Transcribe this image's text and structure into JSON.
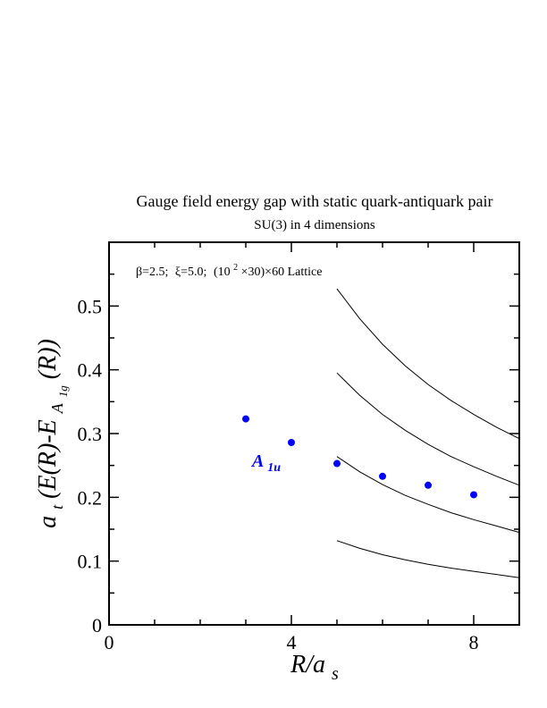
{
  "chart_data": {
    "type": "scatter",
    "title": "Gauge field energy gap with static quark-antiquark pair",
    "subtitle": "SU(3) in 4 dimensions",
    "annotation": {
      "beta": "β=2.5;",
      "xi": "ξ=5.0;",
      "lattice_pre": "(10",
      "lattice_exp": "2",
      "lattice_post": "×30)×60 Lattice"
    },
    "xlabel": {
      "main": "R/a",
      "sub": "s"
    },
    "ylabel": {
      "pre": "a",
      "pre_sub": "t",
      "mid": "(E(R)-E",
      "sub": "A",
      "subsub": "1g",
      "post": "(R))"
    },
    "xlim": [
      0,
      9
    ],
    "ylim": [
      0,
      0.6
    ],
    "x_ticks": [
      0,
      4,
      8
    ],
    "x_tick_labels": [
      "0",
      "4",
      "8"
    ],
    "y_ticks": [
      0,
      0.1,
      0.2,
      0.3,
      0.4,
      0.5
    ],
    "y_tick_labels": [
      "0",
      "0.1",
      "0.2",
      "0.3",
      "0.4",
      "0.5"
    ],
    "series": [
      {
        "name": "A1u",
        "label_main": "A",
        "label_sub": "1u",
        "color": "#0000ff",
        "x": [
          3,
          4,
          5,
          6,
          7,
          8
        ],
        "y": [
          0.323,
          0.286,
          0.253,
          0.233,
          0.219,
          0.204
        ]
      }
    ],
    "curves": [
      {
        "x": [
          5,
          5.5,
          6,
          6.5,
          7,
          7.5,
          8,
          8.5,
          9
        ],
        "y": [
          0.132,
          0.12,
          0.11,
          0.102,
          0.095,
          0.089,
          0.084,
          0.079,
          0.074
        ]
      },
      {
        "x": [
          5,
          5.5,
          6,
          6.5,
          7,
          7.5,
          8,
          8.5,
          9
        ],
        "y": [
          0.264,
          0.24,
          0.22,
          0.203,
          0.189,
          0.176,
          0.165,
          0.155,
          0.145
        ]
      },
      {
        "x": [
          5,
          5.5,
          6,
          6.5,
          7,
          7.5,
          8,
          8.5,
          9
        ],
        "y": [
          0.395,
          0.36,
          0.33,
          0.305,
          0.283,
          0.264,
          0.248,
          0.233,
          0.219
        ]
      },
      {
        "x": [
          5,
          5.5,
          6,
          6.5,
          7,
          7.5,
          8,
          8.5,
          9
        ],
        "y": [
          0.527,
          0.48,
          0.44,
          0.406,
          0.377,
          0.352,
          0.33,
          0.31,
          0.292
        ]
      }
    ]
  }
}
